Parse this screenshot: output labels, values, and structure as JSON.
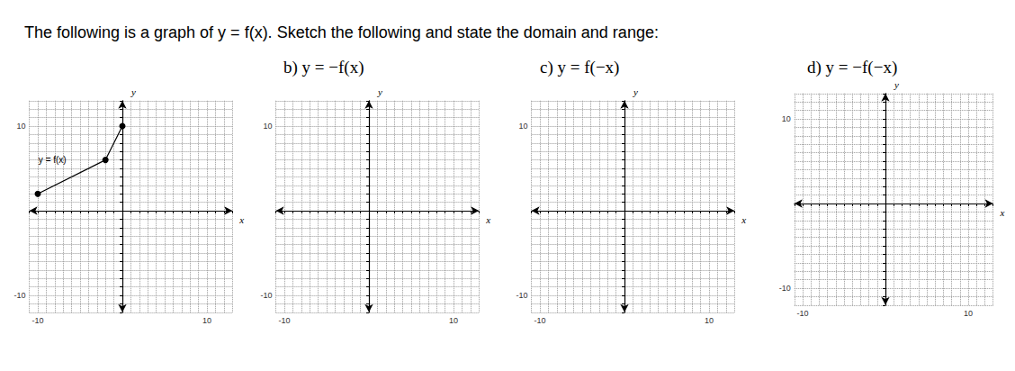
{
  "title": "The following is a graph of y = f(x). Sketch the following and state the domain and range:",
  "chart_data": [
    {
      "type": "line",
      "annotation": "y = f(x)",
      "x": [
        -10,
        -2,
        0
      ],
      "values": [
        2,
        6,
        10
      ],
      "color": "#000000",
      "marker": "circle",
      "xlabel": "x",
      "ylabel": "y",
      "xlim": [
        -11,
        13
      ],
      "ylim": [
        -12,
        13
      ],
      "xticks": [
        -10,
        10
      ],
      "yticks": [
        -10,
        10
      ],
      "grid": true
    },
    {
      "type": "line",
      "title": "b) y = −f(x)",
      "x": [],
      "values": [],
      "color": "#000000",
      "xlabel": "x",
      "ylabel": "y",
      "xlim": [
        -11,
        13
      ],
      "ylim": [
        -12,
        13
      ],
      "xticks": [
        -10,
        10
      ],
      "yticks": [
        -10,
        10
      ],
      "grid": true
    },
    {
      "type": "line",
      "title": "c) y = f(−x)",
      "x": [],
      "values": [],
      "color": "#000000",
      "xlabel": "x",
      "ylabel": "y",
      "xlim": [
        -11,
        13
      ],
      "ylim": [
        -12,
        13
      ],
      "xticks": [
        -10,
        10
      ],
      "yticks": [
        -10,
        10
      ],
      "grid": true
    },
    {
      "type": "line",
      "title": "d) y = −f(−x)",
      "x": [],
      "values": [],
      "color": "#000000",
      "xlabel": "x",
      "ylabel": "y",
      "xlim": [
        -11,
        13
      ],
      "ylim": [
        -12,
        13
      ],
      "xticks": [
        -10,
        10
      ],
      "yticks": [
        -10,
        10
      ],
      "grid": true
    }
  ]
}
